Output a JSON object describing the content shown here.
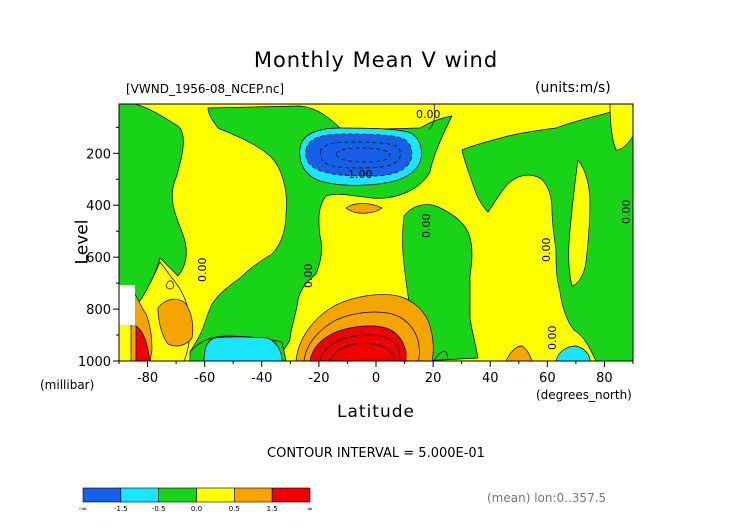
{
  "chart_data": {
    "type": "heatmap",
    "title": "Monthly Mean V wind",
    "source_label": "[VWND_1956-08_NCEP.nc]",
    "units_label": "(units:m/s)",
    "ylabel": "Level",
    "ylabel_units": "(millibar)",
    "xlabel": "Latitude",
    "xlabel_units": "(degrees_north)",
    "xlim": [
      -90,
      90
    ],
    "ylim": [
      1000,
      10
    ],
    "xticks": [
      -80,
      -60,
      -40,
      -20,
      0,
      20,
      40,
      60,
      80
    ],
    "yticks": [
      200,
      400,
      600,
      800,
      1000
    ],
    "contour_interval_text": "CONTOUR INTERVAL = 5.000E-01",
    "mean_text": "(mean) lon:0..357.5",
    "contour_labels": [
      "0.00",
      "-1.00",
      "0.00",
      "0.00",
      "0.00",
      "0.00",
      "0.00",
      "0.00"
    ],
    "colorbar": {
      "colors": [
        "#1560e6",
        "#18e6ff",
        "#18d318",
        "#ffff00",
        "#f5a400",
        "#f00000"
      ],
      "labels": [
        "-∞",
        "-1.5",
        "-0.5",
        "0.0",
        "0.5",
        "1.5",
        "∞"
      ]
    },
    "grid": false
  }
}
